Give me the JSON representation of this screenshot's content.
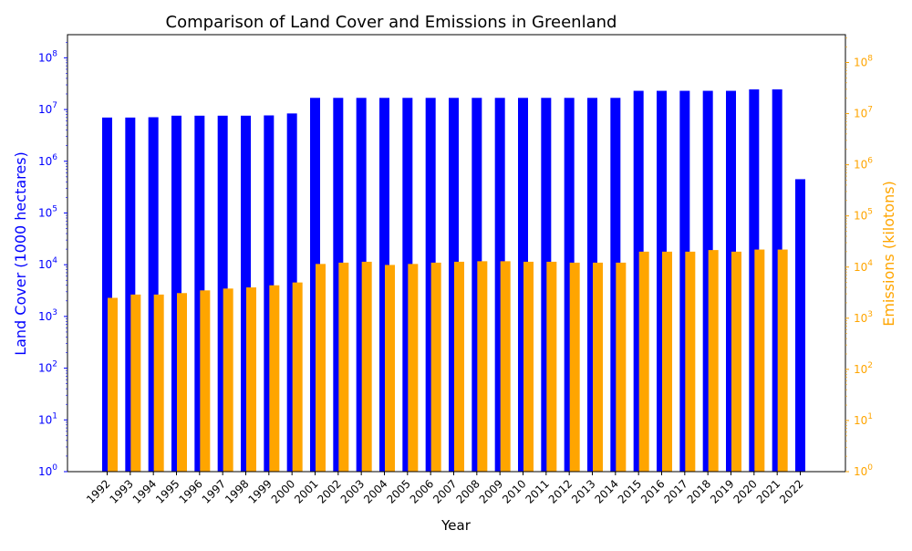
{
  "chart_data": {
    "type": "bar",
    "title": "Comparison of Land Cover and Emissions in Greenland",
    "xlabel": "Year",
    "categories": [
      "1992",
      "1993",
      "1994",
      "1995",
      "1996",
      "1997",
      "1998",
      "1999",
      "2000",
      "2001",
      "2002",
      "2003",
      "2004",
      "2005",
      "2006",
      "2007",
      "2008",
      "2009",
      "2010",
      "2011",
      "2012",
      "2013",
      "2014",
      "2015",
      "2016",
      "2017",
      "2018",
      "2019",
      "2020",
      "2021",
      "2022"
    ],
    "y_left": {
      "label": "Land Cover (1000 hectares)",
      "scale": "log",
      "ylim": [
        1,
        280000000
      ],
      "ticks": [
        {
          "base": "10",
          "exp": "0"
        },
        {
          "base": "10",
          "exp": "1"
        },
        {
          "base": "10",
          "exp": "2"
        },
        {
          "base": "10",
          "exp": "3"
        },
        {
          "base": "10",
          "exp": "4"
        },
        {
          "base": "10",
          "exp": "5"
        },
        {
          "base": "10",
          "exp": "6"
        },
        {
          "base": "10",
          "exp": "7"
        },
        {
          "base": "10",
          "exp": "8"
        }
      ],
      "color": "#0000ff"
    },
    "y_right": {
      "label": "Emissions (kilotons)",
      "scale": "log",
      "ylim": [
        1,
        350000000
      ],
      "ticks": [
        {
          "base": "10",
          "exp": "0"
        },
        {
          "base": "10",
          "exp": "1"
        },
        {
          "base": "10",
          "exp": "2"
        },
        {
          "base": "10",
          "exp": "3"
        },
        {
          "base": "10",
          "exp": "4"
        },
        {
          "base": "10",
          "exp": "5"
        },
        {
          "base": "10",
          "exp": "6"
        },
        {
          "base": "10",
          "exp": "7"
        },
        {
          "base": "10",
          "exp": "8"
        }
      ],
      "color": "#ffa500"
    },
    "series": [
      {
        "axis": "left",
        "color": "#0000ff",
        "values": [
          7000000,
          7000000,
          7100000,
          7600000,
          7600000,
          7600000,
          7600000,
          7700000,
          8400000,
          16800000,
          16800000,
          16800000,
          16800000,
          16800000,
          16800000,
          16800000,
          16800000,
          16800000,
          16800000,
          16800000,
          16800000,
          16800000,
          16800000,
          23000000,
          23000000,
          23000000,
          23000000,
          23000000,
          24500000,
          24500000,
          450000
        ]
      },
      {
        "axis": "right",
        "color": "#ffa500",
        "values": [
          2500,
          2900,
          2900,
          3100,
          3500,
          3800,
          4000,
          4400,
          5000,
          11500,
          12200,
          12700,
          11000,
          11500,
          12200,
          12700,
          13000,
          13000,
          12700,
          12700,
          12200,
          12200,
          12200,
          20000,
          20000,
          20000,
          21500,
          20000,
          22000,
          22000,
          null
        ]
      }
    ],
    "grid": false,
    "legend": "none"
  }
}
